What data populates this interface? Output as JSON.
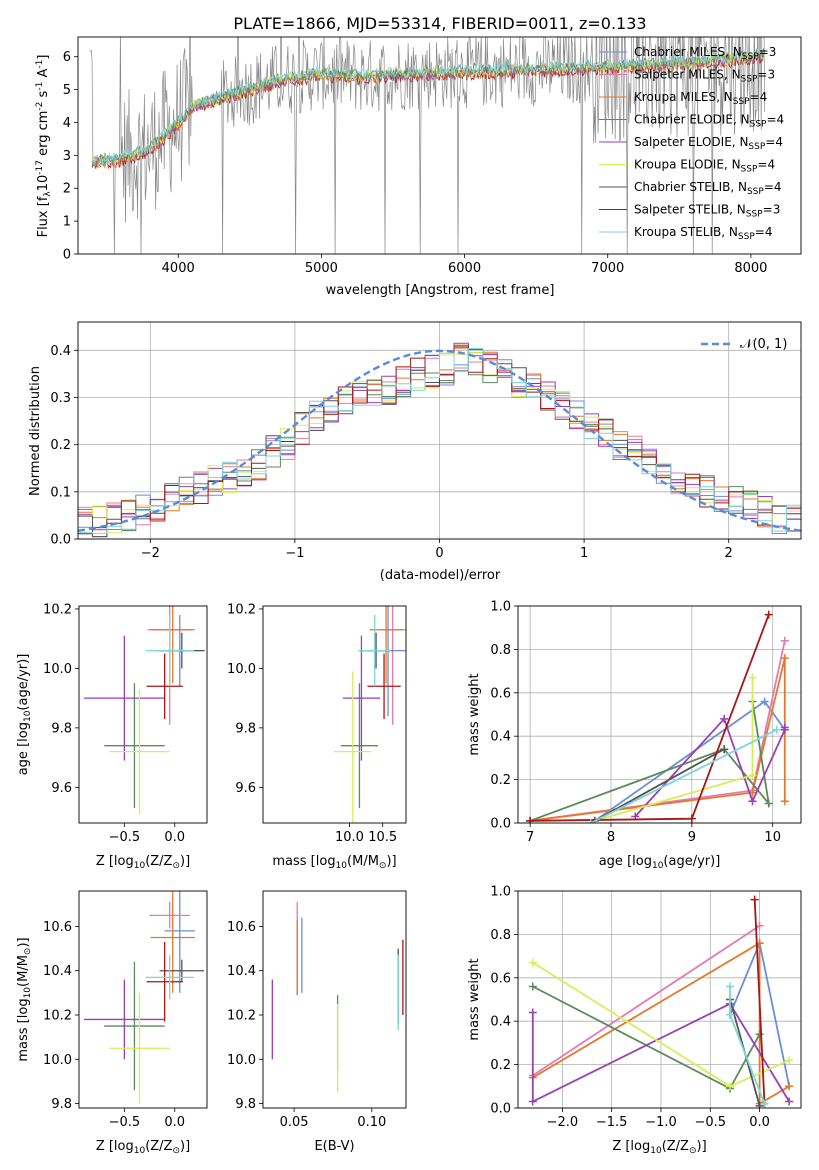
{
  "figure_title": "PLATE=1866, MJD=53314, FIBERID=0011, z=0.133",
  "series_colors": {
    "chabrier_miles": "#6a8fd8",
    "salpeter_miles": "#e27bb3",
    "kroupa_miles": "#e5782b",
    "chabrier_elodie": "#5b8a5e",
    "salpeter_elodie": "#9b3fb5",
    "kroupa_elodie": "#d9ec5a",
    "chabrier_stelib": "#555555",
    "salpeter_stelib": "#a81616",
    "kroupa_stelib": "#7fd6d6",
    "data_spectrum": "#888888",
    "normal_curve": "#5b8ad8"
  },
  "chart_data": [
    {
      "id": "spectrum",
      "type": "line",
      "title": "PLATE=1866, MJD=53314, FIBERID=0011, z=0.133",
      "xlabel": "wavelength [Angstrom, rest frame]",
      "ylabel_main": "Flux [f",
      "ylabel_sub": "λ",
      "ylabel_tail": "10",
      "ylabel_exp": "-17",
      "ylabel_units": " erg cm",
      "ylabel_exp2": "-2",
      "ylabel_s": " s",
      "ylabel_exp3": "-1",
      "ylabel_A": " A",
      "ylabel_exp4": "-1",
      "ylabel_close": "]",
      "xlim": [
        3300,
        8350
      ],
      "ylim": [
        0,
        6.6
      ],
      "xticks": [
        "4000",
        "5000",
        "6000",
        "7000",
        "8000"
      ],
      "xtick_values": [
        4000,
        5000,
        6000,
        7000,
        8000
      ],
      "yticks": [
        "0",
        "1",
        "2",
        "3",
        "4",
        "5",
        "6"
      ],
      "ytick_values": [
        0,
        1,
        2,
        3,
        4,
        5,
        6
      ],
      "legend_placement": "top-right",
      "legend": [
        {
          "name": "Chabrier MILES",
          "nssp": "3"
        },
        {
          "name": "Salpeter MILES",
          "nssp": "3"
        },
        {
          "name": "Kroupa MILES",
          "nssp": "4"
        },
        {
          "name": "Chabrier ELODIE",
          "nssp": "4"
        },
        {
          "name": "Salpeter ELODIE",
          "nssp": "4"
        },
        {
          "name": "Kroupa ELODIE",
          "nssp": "4"
        },
        {
          "name": "Chabrier STELIB",
          "nssp": "4"
        },
        {
          "name": "Salpeter STELIB",
          "nssp": "3"
        },
        {
          "name": "Kroupa STELIB",
          "nssp": "4"
        }
      ],
      "legend_prefix": "N",
      "legend_sub": "SSP",
      "continuum": [
        [
          3400,
          2.8
        ],
        [
          3600,
          2.9
        ],
        [
          3800,
          3.2
        ],
        [
          3950,
          3.8
        ],
        [
          4100,
          4.5
        ],
        [
          4400,
          4.9
        ],
        [
          4700,
          5.3
        ],
        [
          5000,
          5.5
        ],
        [
          5300,
          5.4
        ],
        [
          5600,
          5.5
        ],
        [
          6000,
          5.55
        ],
        [
          6300,
          5.6
        ],
        [
          6600,
          5.65
        ],
        [
          6900,
          5.7
        ],
        [
          7200,
          5.75
        ],
        [
          7600,
          5.85
        ],
        [
          8000,
          6.0
        ],
        [
          8100,
          6.1
        ]
      ]
    },
    {
      "id": "residual_hist",
      "type": "line",
      "xlabel": "(data-model)/error",
      "ylabel": "Normed distribution",
      "xlim": [
        -2.5,
        2.5
      ],
      "ylim": [
        0,
        0.46
      ],
      "xticks": [
        "−2",
        "−1",
        "0",
        "1",
        "2"
      ],
      "xtick_values": [
        -2,
        -1,
        0,
        1,
        2
      ],
      "yticks": [
        "0.0",
        "0.1",
        "0.2",
        "0.3",
        "0.4"
      ],
      "ytick_values": [
        0,
        0.1,
        0.2,
        0.3,
        0.4
      ],
      "legend_placement": "top-right",
      "legend": [
        {
          "name": "𝒩(0, 1)"
        }
      ],
      "bin_edges": [
        -2.5,
        -2.4,
        -2.3,
        -2.2,
        -2.1,
        -2.0,
        -1.9,
        -1.8,
        -1.7,
        -1.6,
        -1.5,
        -1.4,
        -1.3,
        -1.2,
        -1.1,
        -1.0,
        -0.9,
        -0.8,
        -0.7,
        -0.6,
        -0.5,
        -0.4,
        -0.3,
        -0.2,
        -0.1,
        0.0,
        0.1,
        0.2,
        0.3,
        0.4,
        0.5,
        0.6,
        0.7,
        0.8,
        0.9,
        1.0,
        1.1,
        1.2,
        1.3,
        1.4,
        1.5,
        1.6,
        1.7,
        1.8,
        1.9,
        2.0,
        2.1,
        2.2,
        2.3,
        2.4,
        2.5
      ],
      "hist_base": [
        0.04,
        0.035,
        0.045,
        0.05,
        0.06,
        0.07,
        0.085,
        0.1,
        0.11,
        0.125,
        0.13,
        0.145,
        0.16,
        0.185,
        0.2,
        0.235,
        0.26,
        0.28,
        0.29,
        0.3,
        0.315,
        0.32,
        0.33,
        0.35,
        0.355,
        0.36,
        0.38,
        0.37,
        0.365,
        0.35,
        0.33,
        0.33,
        0.3,
        0.28,
        0.26,
        0.24,
        0.22,
        0.2,
        0.19,
        0.17,
        0.15,
        0.13,
        0.12,
        0.1,
        0.09,
        0.08,
        0.07,
        0.06,
        0.045,
        0.04
      ]
    },
    {
      "id": "age_vs_Z",
      "type": "scatter",
      "xlabel": "Z [log",
      "xlabel_sub": "10",
      "xlabel_tail": "(Z/Z",
      "xlabel_sun": "⊙",
      "xlabel_close": ")]",
      "ylabel": "age  [log",
      "ylabel_sub": "10",
      "ylabel_tail": "(age/yr)]",
      "xlim": [
        -0.95,
        0.32
      ],
      "ylim": [
        9.48,
        10.21
      ],
      "xticks": [
        "−0.5",
        "0.0"
      ],
      "xtick_values": [
        -0.5,
        0.0
      ],
      "yticks": [
        "9.6",
        "9.8",
        "10.0",
        "10.2"
      ],
      "ytick_values": [
        9.6,
        9.8,
        10.0,
        10.2
      ],
      "points": [
        {
          "x": 0.05,
          "y": 10.06,
          "xerr": 0.25,
          "yerr": 0.12,
          "color": "chabrier_miles"
        },
        {
          "x": -0.05,
          "y": 10.13,
          "xerr": 0.22,
          "yerr": 0.32,
          "color": "salpeter_miles"
        },
        {
          "x": -0.02,
          "y": 10.13,
          "xerr": 0.22,
          "yerr": 0.18,
          "color": "kroupa_miles"
        },
        {
          "x": -0.4,
          "y": 9.74,
          "xerr": 0.3,
          "yerr": 0.21,
          "color": "chabrier_elodie"
        },
        {
          "x": -0.5,
          "y": 9.9,
          "xerr": 0.4,
          "yerr": 0.21,
          "color": "salpeter_elodie"
        },
        {
          "x": -0.35,
          "y": 9.72,
          "xerr": 0.3,
          "yerr": 0.21,
          "color": "kroupa_elodie"
        },
        {
          "x": 0.07,
          "y": 10.06,
          "xerr": 0.22,
          "yerr": 0.06,
          "color": "chabrier_stelib"
        },
        {
          "x": -0.1,
          "y": 9.94,
          "xerr": 0.18,
          "yerr": 0.11,
          "color": "salpeter_stelib"
        },
        {
          "x": -0.05,
          "y": 10.06,
          "xerr": 0.24,
          "yerr": 0.12,
          "color": "kroupa_stelib"
        }
      ]
    },
    {
      "id": "age_vs_mass",
      "type": "scatter",
      "xlabel": "mass [log",
      "xlabel_sub": "10",
      "xlabel_tail": "(M/M",
      "xlabel_sun": "⊙",
      "xlabel_close": ")]",
      "xlim": [
        8.7,
        10.85
      ],
      "ylim": [
        9.48,
        10.21
      ],
      "xticks": [
        "10.0",
        "10.5"
      ],
      "xtick_values": [
        10.0,
        10.5
      ],
      "yticks": [
        "9.6",
        "9.8",
        "10.0",
        "10.2"
      ],
      "ytick_values": [
        9.6,
        9.8,
        10.0,
        10.2
      ],
      "points": [
        {
          "x": 10.58,
          "y": 10.06,
          "xerr": 0.3,
          "yerr": 0.22,
          "color": "chabrier_miles"
        },
        {
          "x": 10.65,
          "y": 10.13,
          "xerr": 0.2,
          "yerr": 0.32,
          "color": "salpeter_miles"
        },
        {
          "x": 10.55,
          "y": 10.13,
          "xerr": 0.25,
          "yerr": 0.18,
          "color": "kroupa_miles"
        },
        {
          "x": 10.15,
          "y": 9.74,
          "xerr": 0.28,
          "yerr": 0.21,
          "color": "chabrier_elodie"
        },
        {
          "x": 10.18,
          "y": 9.9,
          "xerr": 0.28,
          "yerr": 0.21,
          "color": "salpeter_elodie"
        },
        {
          "x": 10.05,
          "y": 9.72,
          "xerr": 0.28,
          "yerr": 0.27,
          "color": "kroupa_elodie"
        },
        {
          "x": 10.4,
          "y": 10.06,
          "xerr": 0.25,
          "yerr": 0.06,
          "color": "chabrier_stelib"
        },
        {
          "x": 10.52,
          "y": 9.94,
          "xerr": 0.25,
          "yerr": 0.11,
          "color": "salpeter_stelib"
        },
        {
          "x": 10.38,
          "y": 10.06,
          "xerr": 0.25,
          "yerr": 0.12,
          "color": "kroupa_stelib"
        }
      ]
    },
    {
      "id": "mass_weight_vs_age",
      "type": "line",
      "xlabel": "age  [log",
      "xlabel_sub": "10",
      "xlabel_tail": "(age/yr)]",
      "ylabel": "mass weight",
      "xlim": [
        6.85,
        10.35
      ],
      "ylim": [
        0,
        1
      ],
      "xticks": [
        "7",
        "8",
        "9",
        "10"
      ],
      "xtick_values": [
        7,
        8,
        9,
        10
      ],
      "yticks": [
        "0.0",
        "0.2",
        "0.4",
        "0.6",
        "0.8",
        "1.0"
      ],
      "ytick_values": [
        0,
        0.2,
        0.4,
        0.6,
        0.8,
        1.0
      ],
      "series": [
        {
          "color": "chabrier_miles",
          "x": [
            7.8,
            9.9,
            10.15
          ],
          "y": [
            0.01,
            0.56,
            0.43
          ]
        },
        {
          "color": "salpeter_miles",
          "x": [
            7.0,
            9.75,
            10.15
          ],
          "y": [
            0.01,
            0.15,
            0.84
          ]
        },
        {
          "color": "kroupa_miles",
          "x": [
            7.0,
            9.75,
            10.15,
            10.15
          ],
          "y": [
            0.01,
            0.14,
            0.76,
            0.1
          ]
        },
        {
          "color": "chabrier_elodie",
          "x": [
            7.0,
            9.4,
            9.95,
            9.75
          ],
          "y": [
            0.01,
            0.34,
            0.09,
            0.56
          ]
        },
        {
          "color": "salpeter_elodie",
          "x": [
            8.3,
            9.4,
            9.75,
            10.15,
            10.15
          ],
          "y": [
            0.03,
            0.48,
            0.1,
            0.43,
            0.44
          ]
        },
        {
          "color": "kroupa_elodie",
          "x": [
            7.8,
            9.75,
            9.75
          ],
          "y": [
            0.01,
            0.22,
            0.67
          ]
        },
        {
          "color": "chabrier_stelib",
          "x": [
            7.8,
            9.4
          ],
          "y": [
            0.01,
            0.34
          ]
        },
        {
          "color": "salpeter_stelib",
          "x": [
            7.0,
            9.0,
            9.95
          ],
          "y": [
            0.01,
            0.02,
            0.96
          ]
        },
        {
          "color": "kroupa_stelib",
          "x": [
            7.75,
            10.05
          ],
          "y": [
            0.0,
            0.43
          ]
        }
      ]
    },
    {
      "id": "mass_vs_Z",
      "type": "scatter",
      "xlabel": "Z [log",
      "xlabel_sub": "10",
      "xlabel_tail": "(Z/Z",
      "xlabel_sun": "⊙",
      "xlabel_close": ")]",
      "ylabel": "mass [log",
      "ylabel_sub": "10",
      "ylabel_tail": "(M/M",
      "ylabel_sun": "⊙",
      "ylabel_close": ")]",
      "xlim": [
        -0.95,
        0.32
      ],
      "ylim": [
        9.78,
        10.76
      ],
      "xticks": [
        "−0.5",
        "0.0"
      ],
      "xtick_values": [
        -0.5,
        0.0
      ],
      "yticks": [
        "9.8",
        "10.0",
        "10.2",
        "10.4",
        "10.6"
      ],
      "ytick_values": [
        9.8,
        10.0,
        10.2,
        10.4,
        10.6
      ],
      "points": [
        {
          "x": 0.05,
          "y": 10.58,
          "xerr": 0.15,
          "yerr": 0.28,
          "color": "chabrier_miles"
        },
        {
          "x": -0.05,
          "y": 10.65,
          "xerr": 0.2,
          "yerr": 0.06,
          "color": "salpeter_miles"
        },
        {
          "x": -0.02,
          "y": 10.55,
          "xerr": 0.22,
          "yerr": 0.25,
          "color": "kroupa_miles"
        },
        {
          "x": -0.4,
          "y": 10.15,
          "xerr": 0.3,
          "yerr": 0.29,
          "color": "chabrier_elodie"
        },
        {
          "x": -0.5,
          "y": 10.18,
          "xerr": 0.4,
          "yerr": 0.18,
          "color": "salpeter_elodie"
        },
        {
          "x": -0.35,
          "y": 10.05,
          "xerr": 0.3,
          "yerr": 0.25,
          "color": "kroupa_elodie"
        },
        {
          "x": 0.07,
          "y": 10.4,
          "xerr": 0.22,
          "yerr": 0.05,
          "color": "chabrier_stelib"
        },
        {
          "x": -0.1,
          "y": 10.35,
          "xerr": 0.18,
          "yerr": 0.18,
          "color": "salpeter_stelib"
        },
        {
          "x": -0.05,
          "y": 10.37,
          "xerr": 0.24,
          "yerr": 0.1,
          "color": "kroupa_stelib"
        }
      ]
    },
    {
      "id": "mass_vs_ebv",
      "type": "scatter",
      "xlabel": "E(B-V)",
      "xlim": [
        0.03,
        0.122
      ],
      "ylim": [
        9.78,
        10.76
      ],
      "xticks": [
        "0.05",
        "0.10"
      ],
      "xtick_values": [
        0.05,
        0.1
      ],
      "yticks": [
        "9.8",
        "10.0",
        "10.2",
        "10.4",
        "10.6"
      ],
      "ytick_values": [
        9.8,
        10.0,
        10.2,
        10.4,
        10.6
      ],
      "points": [
        {
          "x": 0.055,
          "y": 10.47,
          "yerr": 0.17,
          "color": "chabrier_miles"
        },
        {
          "x": 0.052,
          "y": 10.5,
          "yerr": 0.21,
          "color": "salpeter_miles"
        },
        {
          "x": 0.052,
          "y": 10.46,
          "yerr": 0.17,
          "color": "kroupa_miles"
        },
        {
          "x": 0.078,
          "y": 10.12,
          "yerr": 0.17,
          "color": "chabrier_elodie"
        },
        {
          "x": 0.036,
          "y": 10.18,
          "yerr": 0.18,
          "color": "salpeter_elodie"
        },
        {
          "x": 0.078,
          "y": 10.05,
          "yerr": 0.2,
          "color": "kroupa_elodie"
        },
        {
          "x": 0.117,
          "y": 10.33,
          "yerr": 0.17,
          "color": "chabrier_stelib"
        },
        {
          "x": 0.12,
          "y": 10.37,
          "yerr": 0.17,
          "color": "salpeter_stelib"
        },
        {
          "x": 0.117,
          "y": 10.3,
          "yerr": 0.17,
          "color": "kroupa_stelib"
        }
      ]
    },
    {
      "id": "mass_weight_vs_Z",
      "type": "line",
      "xlabel": "Z [log",
      "xlabel_sub": "10",
      "xlabel_tail": "(Z/Z",
      "xlabel_sun": "⊙",
      "xlabel_close": ")]",
      "ylabel": "mass weight",
      "xlim": [
        -2.45,
        0.42
      ],
      "ylim": [
        0,
        1
      ],
      "xticks": [
        "−2.0",
        "−1.5",
        "−1.0",
        "−0.5",
        "0.0"
      ],
      "xtick_values": [
        -2.0,
        -1.5,
        -1.0,
        -0.5,
        0.0
      ],
      "yticks": [
        "0.0",
        "0.2",
        "0.4",
        "0.6",
        "0.8",
        "1.0"
      ],
      "ytick_values": [
        0,
        0.2,
        0.4,
        0.6,
        0.8,
        1.0
      ],
      "series": [
        {
          "color": "chabrier_miles",
          "x": [
            -0.3,
            0.0,
            0.3
          ],
          "y": [
            0.43,
            0.76,
            0.1
          ]
        },
        {
          "color": "salpeter_miles",
          "x": [
            -2.3,
            0.0
          ],
          "y": [
            0.15,
            0.84
          ]
        },
        {
          "color": "kroupa_miles",
          "x": [
            -2.3,
            0.0,
            0.0,
            0.3
          ],
          "y": [
            0.14,
            0.76,
            0.02,
            0.1
          ]
        },
        {
          "color": "chabrier_elodie",
          "x": [
            -2.3,
            -0.3,
            0.0
          ],
          "y": [
            0.56,
            0.09,
            0.34
          ]
        },
        {
          "color": "salpeter_elodie",
          "x": [
            -2.3,
            -2.3,
            -0.3,
            0.3
          ],
          "y": [
            0.44,
            0.03,
            0.48,
            0.03
          ]
        },
        {
          "color": "kroupa_elodie",
          "x": [
            -2.3,
            -0.3,
            0.3
          ],
          "y": [
            0.67,
            0.1,
            0.22
          ]
        },
        {
          "color": "chabrier_stelib",
          "x": [
            -0.3,
            0.0
          ],
          "y": [
            0.5,
            0.01
          ]
        },
        {
          "color": "salpeter_stelib",
          "x": [
            -0.05,
            0.05
          ],
          "y": [
            0.96,
            0.02
          ]
        },
        {
          "color": "kroupa_stelib",
          "x": [
            -0.3,
            -0.3,
            0.05
          ],
          "y": [
            0.56,
            0.43,
            0.02
          ]
        }
      ]
    }
  ]
}
